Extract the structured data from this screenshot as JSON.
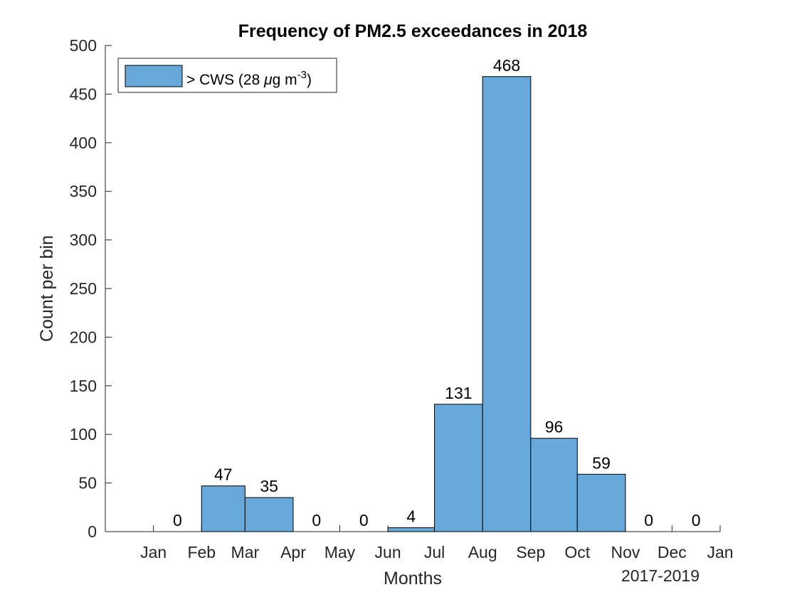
{
  "chart_data": {
    "type": "bar",
    "title": "Frequency of PM2.5 exceedances in 2018",
    "xlabel": "Months",
    "ylabel": "Count per bin",
    "x_secondary_label": "2017-2019",
    "categories": [
      "Jan",
      "Feb",
      "Mar",
      "Apr",
      "May",
      "Jun",
      "Jul",
      "Aug",
      "Sep",
      "Oct",
      "Nov",
      "Dec"
    ],
    "x_tick_labels": [
      "Jan",
      "Feb",
      "Mar",
      "Apr",
      "May",
      "Jun",
      "Jul",
      "Aug",
      "Sep",
      "Oct",
      "Nov",
      "Dec",
      "Jan"
    ],
    "bin_edges": [
      "2018-01-01",
      "2018-02-01",
      "2018-03-01",
      "2018-04-01",
      "2018-05-01",
      "2018-06-01",
      "2018-07-01",
      "2018-08-01",
      "2018-09-01",
      "2018-10-01",
      "2018-11-01",
      "2018-12-01",
      "2019-01-01"
    ],
    "x_axis_start": "2017-12-01",
    "series": [
      {
        "name": "> CWS (28 μg m-3)",
        "values": [
          0,
          47,
          35,
          0,
          0,
          4,
          131,
          468,
          96,
          59,
          0,
          0
        ],
        "color": "#66a9da"
      }
    ],
    "data_labels": [
      "0",
      "47",
      "35",
      "0",
      "0",
      "4",
      "131",
      "468",
      "96",
      "59",
      "0",
      "0"
    ],
    "y_ticks": [
      0,
      50,
      100,
      150,
      200,
      250,
      300,
      350,
      400,
      450,
      500
    ],
    "ylim": [
      0,
      500
    ],
    "grid": false,
    "legend_placement": "top-left",
    "legend": {
      "prefix": "> CWS (28 ",
      "mu": "μ",
      "unit": "g m",
      "exponent": "-3",
      "suffix": ")"
    }
  }
}
